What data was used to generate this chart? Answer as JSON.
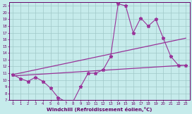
{
  "xlabel": "Windchill (Refroidissement éolien,°C)",
  "xlim": [
    -0.5,
    23.5
  ],
  "ylim": [
    7,
    21.5
  ],
  "xticks": [
    0,
    1,
    2,
    3,
    4,
    5,
    6,
    7,
    8,
    9,
    10,
    11,
    12,
    13,
    14,
    15,
    16,
    17,
    18,
    19,
    20,
    21,
    22,
    23
  ],
  "yticks": [
    7,
    8,
    9,
    10,
    11,
    12,
    13,
    14,
    15,
    16,
    17,
    18,
    19,
    20,
    21
  ],
  "background_color": "#c6ebeb",
  "grid_color": "#a0c8c8",
  "line_color": "#993399",
  "line1_x": [
    0,
    1,
    2,
    3,
    4,
    5,
    6,
    7,
    8,
    9,
    10,
    11,
    12,
    13,
    14,
    15,
    16,
    17,
    18,
    19,
    20,
    21,
    22,
    23
  ],
  "line1_y": [
    10.8,
    10.2,
    9.8,
    10.4,
    9.8,
    8.8,
    7.4,
    6.8,
    6.8,
    9.0,
    11.0,
    11.0,
    11.5,
    13.5,
    21.3,
    21.0,
    17.0,
    19.2,
    18.0,
    19.0,
    16.2,
    13.5,
    12.2,
    12.2
  ],
  "line2_x": [
    0,
    23
  ],
  "line2_y": [
    10.8,
    16.2
  ],
  "line3_x": [
    0,
    23
  ],
  "line3_y": [
    10.6,
    12.2
  ]
}
